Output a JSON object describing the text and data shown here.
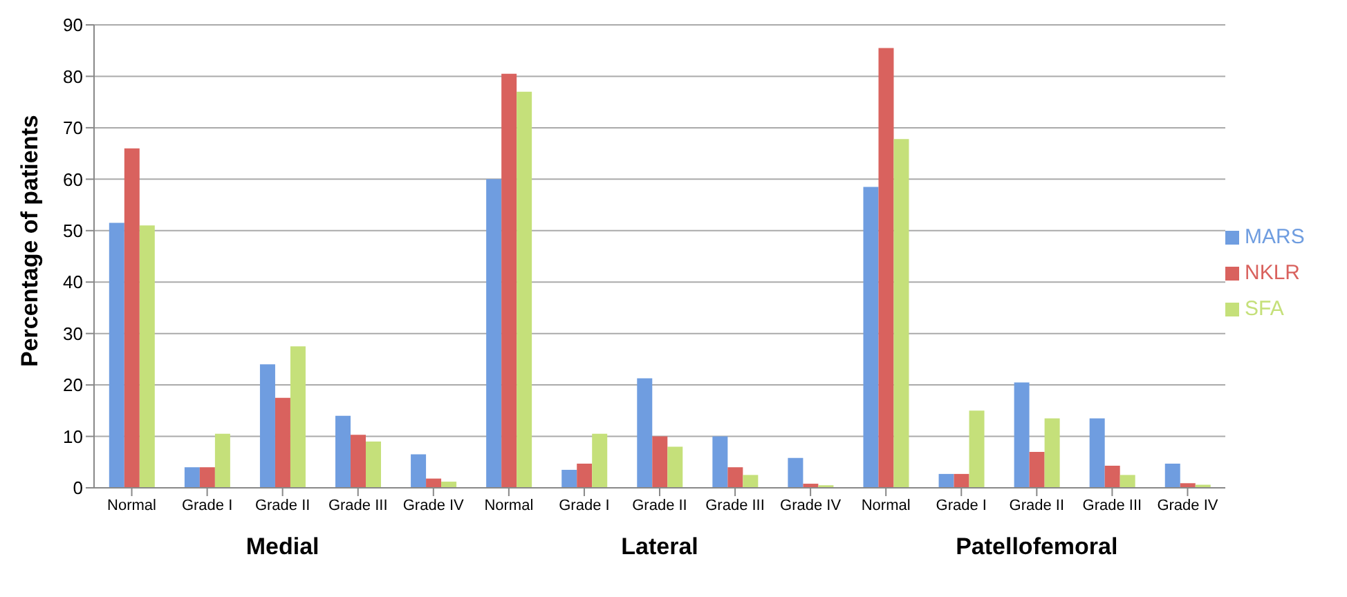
{
  "chart_data": {
    "type": "bar",
    "ylabel": "Percentage of patients",
    "categories": [
      "Normal",
      "Grade I",
      "Grade II",
      "Grade III",
      "Grade IV",
      "Normal",
      "Grade I",
      "Grade II",
      "Grade III",
      "Grade IV",
      "Normal",
      "Grade I",
      "Grade II",
      "Grade III",
      "Grade IV"
    ],
    "series": [
      {
        "name": "MARS",
        "color": "#6f9de0",
        "values": [
          51.5,
          4,
          24,
          14,
          6.5,
          60,
          3.5,
          21.3,
          10,
          5.8,
          58.5,
          2.7,
          20.5,
          13.5,
          4.7
        ]
      },
      {
        "name": "NKLR",
        "color": "#d9625e",
        "values": [
          66,
          4,
          17.5,
          10.3,
          1.8,
          80.5,
          4.7,
          10,
          4,
          0.8,
          85.5,
          2.7,
          7,
          4.3,
          0.9
        ]
      },
      {
        "name": "SFA",
        "color": "#c5e07a",
        "values": [
          51,
          10.5,
          27.5,
          9,
          1.2,
          77,
          10.5,
          8,
          2.5,
          0.5,
          67.8,
          15,
          13.5,
          2.5,
          0.6
        ]
      }
    ],
    "ylim": [
      0,
      90
    ],
    "yticks": [
      0,
      10,
      20,
      30,
      40,
      50,
      60,
      70,
      80,
      90
    ],
    "grid": "y",
    "legend": "right",
    "annotations": [
      "Medial",
      "Lateral",
      "Patellofemoral"
    ]
  }
}
